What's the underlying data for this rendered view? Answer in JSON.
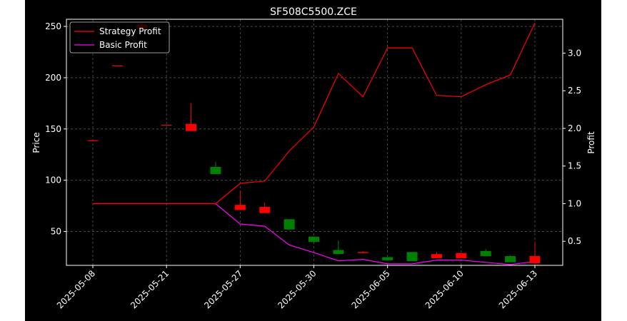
{
  "chart_data": {
    "type": "candlestick",
    "title": "SF508C5500.ZCE",
    "ylabel_left": "Price",
    "ylabel_right": "Profit",
    "xlabel": "",
    "ylim_left": [
      17,
      257
    ],
    "ylim_right": [
      0.18,
      3.45
    ],
    "yticks_left": [
      50,
      100,
      150,
      200,
      250
    ],
    "yticks_right": [
      0.5,
      1.0,
      1.5,
      2.0,
      2.5,
      3.0
    ],
    "ytick_labels_left": [
      "50",
      "100",
      "150",
      "200",
      "250"
    ],
    "ytick_labels_right": [
      "0.5",
      "1.0",
      "1.5",
      "2.0",
      "2.5",
      "3.0"
    ],
    "xtick_labels": [
      "2025-05-08",
      "2025-05-21",
      "2025-05-27",
      "2025-05-30",
      "2025-06-05",
      "2025-06-10",
      "2025-06-13"
    ],
    "xtick_positions": [
      0,
      3,
      6,
      9,
      12,
      15,
      18
    ],
    "grid": true,
    "legend_position": "top-left",
    "colors": {
      "up": "#ff0000",
      "down": "#008000",
      "strategy": "#ff0000",
      "basic": "#ff00ff",
      "grid": "#555555",
      "background": "#000000"
    },
    "candles": [
      {
        "index": 0,
        "open": 139,
        "close": 139,
        "high": 139,
        "low": 139
      },
      {
        "index": 1,
        "open": 212,
        "close": 212,
        "high": 212,
        "low": 212
      },
      {
        "index": 2,
        "open": 248,
        "close": 252,
        "high": 253,
        "low": 246
      },
      {
        "index": 3,
        "open": 154,
        "close": 154,
        "high": 154,
        "low": 154
      },
      {
        "index": 4,
        "open": 148,
        "close": 155,
        "high": 175,
        "low": 148
      },
      {
        "index": 5,
        "open": 113,
        "close": 106,
        "high": 118,
        "low": 106
      },
      {
        "index": 6,
        "open": 71,
        "close": 76,
        "high": 90,
        "low": 71
      },
      {
        "index": 7,
        "open": 68,
        "close": 74,
        "high": 78,
        "low": 68
      },
      {
        "index": 8,
        "open": 62,
        "close": 52,
        "high": 62,
        "low": 52
      },
      {
        "index": 9,
        "open": 45,
        "close": 40,
        "high": 45,
        "low": 40
      },
      {
        "index": 10,
        "open": 32,
        "close": 28,
        "high": 41,
        "low": 28
      },
      {
        "index": 11,
        "open": 29,
        "close": 30,
        "high": 31,
        "low": 29
      },
      {
        "index": 12,
        "open": 25,
        "close": 22,
        "high": 25,
        "low": 22
      },
      {
        "index": 13,
        "open": 30,
        "close": 21,
        "high": 30,
        "low": 21
      },
      {
        "index": 14,
        "open": 24,
        "close": 28,
        "high": 30,
        "low": 24
      },
      {
        "index": 15,
        "open": 24,
        "close": 29,
        "high": 29,
        "low": 24
      },
      {
        "index": 16,
        "open": 31,
        "close": 26,
        "high": 33,
        "low": 26
      },
      {
        "index": 17,
        "open": 26,
        "close": 20,
        "high": 27,
        "low": 20
      },
      {
        "index": 18,
        "open": 19,
        "close": 26,
        "high": 40,
        "low": 19
      }
    ],
    "series": [
      {
        "name": "Strategy Profit",
        "axis": "right",
        "x": [
          0,
          1,
          2,
          3,
          4,
          5,
          6,
          7,
          8,
          9,
          10,
          11,
          12,
          13,
          14,
          15,
          16,
          17,
          18
        ],
        "values": [
          1.0,
          1.0,
          1.0,
          1.0,
          1.0,
          1.0,
          1.27,
          1.3,
          1.7,
          2.02,
          2.73,
          2.42,
          3.07,
          3.07,
          2.44,
          2.42,
          2.58,
          2.71,
          3.4
        ]
      },
      {
        "name": "Basic Profit",
        "axis": "right",
        "x": [
          0,
          1,
          2,
          3,
          4,
          5,
          6,
          7,
          8,
          9,
          10,
          11,
          12,
          13,
          14,
          15,
          16,
          17,
          18
        ],
        "values": [
          1.0,
          1.0,
          1.0,
          1.0,
          1.0,
          1.0,
          0.73,
          0.7,
          0.45,
          0.35,
          0.24,
          0.26,
          0.2,
          0.2,
          0.25,
          0.25,
          0.22,
          0.19,
          0.23
        ]
      }
    ]
  }
}
